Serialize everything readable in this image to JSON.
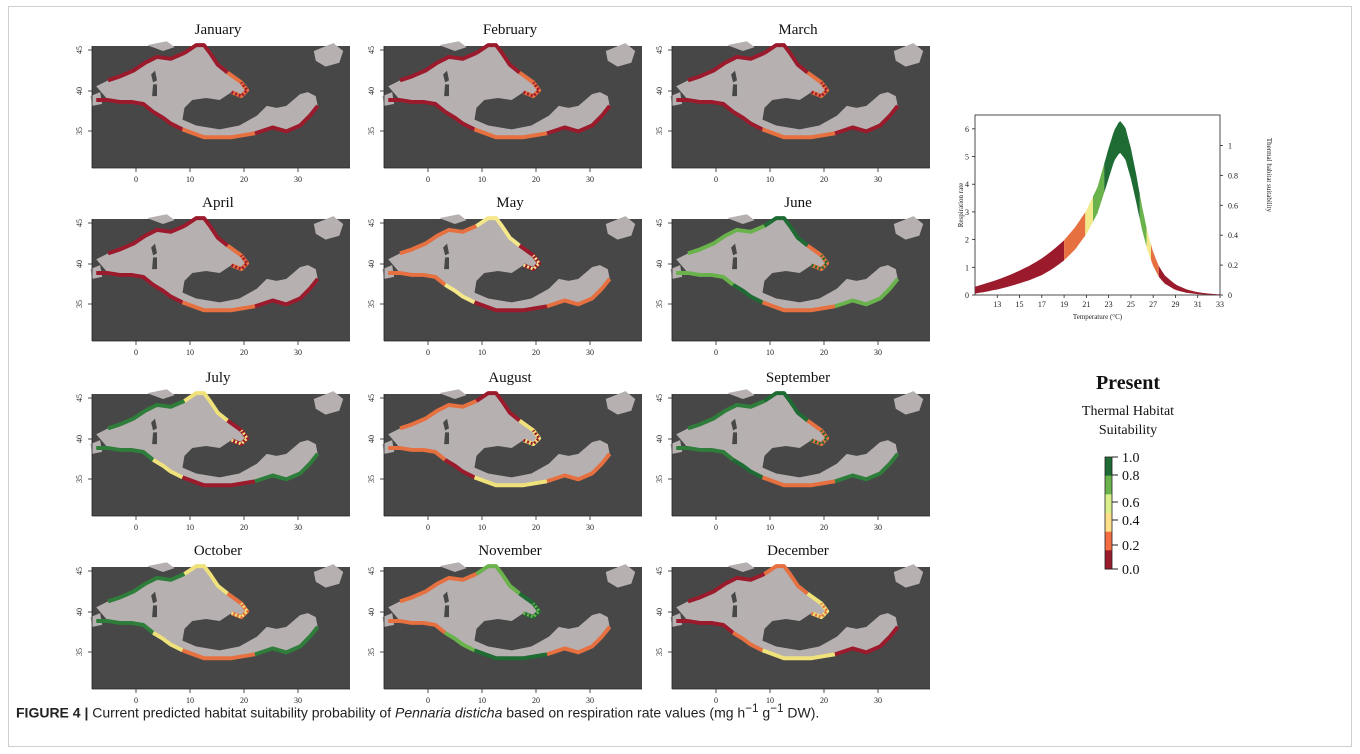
{
  "months": [
    "January",
    "February",
    "March",
    "April",
    "May",
    "June",
    "July",
    "August",
    "September",
    "October",
    "November",
    "December"
  ],
  "map_axes": {
    "y_ticks": [
      "45",
      "40",
      "35"
    ],
    "x_ticks": [
      "0",
      "10",
      "20",
      "30"
    ]
  },
  "month_palettes": [
    [
      "#9b1a2c",
      "#9b1a2c",
      "#e67040"
    ],
    [
      "#9b1a2c",
      "#9b1a2c",
      "#e67040"
    ],
    [
      "#9b1a2c",
      "#9b1a2c",
      "#e67040"
    ],
    [
      "#9b1a2c",
      "#9b1a2c",
      "#e67040"
    ],
    [
      "#e67040",
      "#f5e88a",
      "#9b1a2c"
    ],
    [
      "#6ab34c",
      "#1e6b33",
      "#e67040"
    ],
    [
      "#2f7d3a",
      "#f0e27a",
      "#9b1a2c"
    ],
    [
      "#e67040",
      "#9b1a2c",
      "#f0e27a"
    ],
    [
      "#2f7d3a",
      "#1e6b33",
      "#e67040"
    ],
    [
      "#2f7d3a",
      "#f0e27a",
      "#e67040"
    ],
    [
      "#e67040",
      "#6ab34c",
      "#1e6b33"
    ],
    [
      "#9b1a2c",
      "#e67040",
      "#f0e27a"
    ]
  ],
  "chart_data": {
    "type": "area",
    "xlabel": "Temperature (°C)",
    "ylabel": "Respiration rate",
    "y2label": "Thermal habitat suitability",
    "x_ticks": [
      "13",
      "15",
      "17",
      "19",
      "21",
      "23",
      "25",
      "27",
      "29",
      "31",
      "33"
    ],
    "y_ticks": [
      "0",
      "1",
      "2",
      "3",
      "4",
      "5",
      "6"
    ],
    "y2_ticks": [
      "0",
      "0.2",
      "0.4",
      "0.6",
      "0.8",
      "1"
    ],
    "xlim": [
      11,
      33
    ],
    "ylim": [
      0,
      6.5
    ],
    "x": [
      11,
      12,
      13,
      14,
      15,
      16,
      17,
      18,
      19,
      20,
      21,
      22,
      23,
      23.5,
      24,
      24.5,
      25,
      25.5,
      26,
      26.5,
      27,
      27.5,
      28,
      29,
      30,
      31,
      32,
      33
    ],
    "upper": [
      0.3,
      0.42,
      0.55,
      0.7,
      0.88,
      1.08,
      1.32,
      1.62,
      1.98,
      2.45,
      3.05,
      3.9,
      5.3,
      5.95,
      6.3,
      6.05,
      5.3,
      4.3,
      3.2,
      2.25,
      1.55,
      1.05,
      0.72,
      0.38,
      0.2,
      0.1,
      0.05,
      0.02
    ],
    "lower": [
      0.05,
      0.12,
      0.2,
      0.3,
      0.42,
      0.55,
      0.72,
      0.95,
      1.25,
      1.65,
      2.2,
      2.95,
      4.2,
      4.85,
      5.15,
      4.9,
      4.2,
      3.3,
      2.35,
      1.6,
      1.05,
      0.66,
      0.42,
      0.18,
      0.08,
      0.03,
      0.01,
      0.0
    ],
    "bands": [
      {
        "range": [
          11,
          19
        ],
        "color": "#9b1a2c"
      },
      {
        "range": [
          19,
          20.9
        ],
        "color": "#e67040"
      },
      {
        "range": [
          20.9,
          21.6
        ],
        "color": "#f1e98a"
      },
      {
        "range": [
          21.6,
          22.6
        ],
        "color": "#6ab34c"
      },
      {
        "range": [
          22.6,
          25.8
        ],
        "color": "#1e6b33"
      },
      {
        "range": [
          25.8,
          26.4
        ],
        "color": "#6ab34c"
      },
      {
        "range": [
          26.4,
          26.8
        ],
        "color": "#f1e98a"
      },
      {
        "range": [
          26.8,
          27.5
        ],
        "color": "#e67040"
      },
      {
        "range": [
          27.5,
          33
        ],
        "color": "#9b1a2c"
      }
    ]
  },
  "legend": {
    "title": "Present",
    "subtitle_1": "Thermal Habitat",
    "subtitle_2": "Suitability",
    "ticks": [
      "1.0",
      "0.8",
      "0.6",
      "0.4",
      "0.2",
      "0.0"
    ],
    "colors": [
      "#1e6b33",
      "#6ab34c",
      "#d9ef8b",
      "#fee08b",
      "#f46d43",
      "#9b1a2c"
    ]
  },
  "caption": {
    "label": "FIGURE 4 |",
    "text_1": " Current predicted habitat suitability probability of ",
    "species": "Pennaria disticha",
    "text_2": " based on respiration rate values (mg h",
    "sup1": "−1",
    "text_3": " g",
    "sup2": "−1",
    "text_4": " DW)."
  }
}
